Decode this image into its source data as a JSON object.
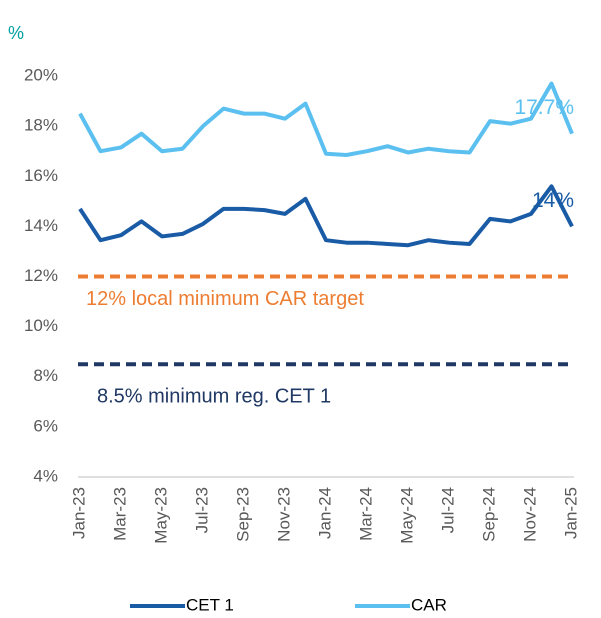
{
  "chart_data": {
    "type": "line",
    "y_unit": "%",
    "categories": [
      "Jan-23",
      null,
      "Mar-23",
      null,
      "May-23",
      null,
      "Jul-23",
      null,
      "Sep-23",
      null,
      "Nov-23",
      null,
      "Jan-24",
      null,
      "Mar-24",
      null,
      "May-24",
      null,
      "Jul-24",
      null,
      "Sep-24",
      null,
      "Nov-24",
      null,
      "Jan-25"
    ],
    "series": [
      {
        "name": "CET 1",
        "color": "#1a5ba6",
        "values": [
          14.7,
          13.45,
          13.65,
          14.2,
          13.6,
          13.7,
          14.1,
          14.7,
          14.7,
          14.65,
          14.5,
          15.1,
          13.45,
          13.35,
          13.35,
          13.3,
          13.25,
          13.45,
          13.35,
          13.3,
          14.3,
          14.2,
          14.5,
          15.6,
          14.0
        ],
        "value_labels": [
          null,
          null,
          null,
          null,
          null,
          null,
          null,
          null,
          null,
          null,
          null,
          null,
          null,
          null,
          null,
          null,
          null,
          null,
          null,
          null,
          null,
          null,
          null,
          null,
          "14%"
        ]
      },
      {
        "name": "CAR",
        "color": "#5bc0f0",
        "values": [
          18.5,
          17.0,
          17.15,
          17.7,
          17.0,
          17.1,
          18.0,
          18.7,
          18.5,
          18.5,
          18.3,
          18.9,
          16.9,
          16.85,
          17.0,
          17.2,
          16.95,
          17.1,
          17.0,
          16.95,
          18.2,
          18.1,
          18.3,
          19.7,
          17.7
        ],
        "value_labels": [
          null,
          null,
          null,
          null,
          null,
          null,
          null,
          null,
          null,
          null,
          null,
          null,
          null,
          null,
          null,
          null,
          null,
          null,
          null,
          null,
          null,
          null,
          null,
          null,
          "17.7%"
        ]
      }
    ],
    "reference_lines": [
      {
        "value": 12,
        "label": "12% local minimum CAR target",
        "color": "#ed7d31"
      },
      {
        "value": 8.5,
        "label": "8.5% minimum reg. CET 1",
        "color": "#1f3864"
      }
    ],
    "ylim": [
      4,
      20.6
    ],
    "yticks": [
      {
        "value": 4,
        "label": "4%"
      },
      {
        "value": 6,
        "label": "6%"
      },
      {
        "value": 8,
        "label": "8%"
      },
      {
        "value": 10,
        "label": "10%"
      },
      {
        "value": 12,
        "label": "12%"
      },
      {
        "value": 14,
        "label": "14%"
      },
      {
        "value": 16,
        "label": "16%"
      },
      {
        "value": 18,
        "label": "18%"
      },
      {
        "value": 20,
        "label": "20%"
      }
    ],
    "grid": false,
    "legend": "bottom"
  }
}
